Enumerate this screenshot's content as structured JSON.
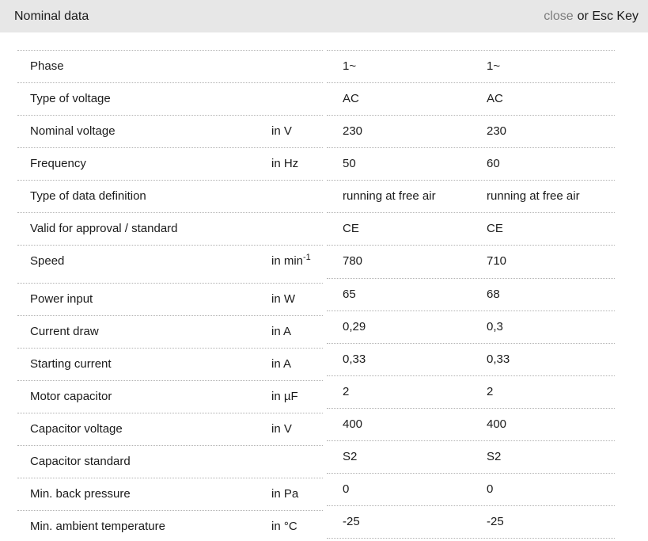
{
  "header": {
    "title": "Nominal data",
    "close_label": "close",
    "close_suffix": "or Esc Key"
  },
  "colors": {
    "header_bg": "#e7e7e7",
    "divider": "#b2b2b2",
    "text": "#1b1b1b",
    "close_link": "#7c7c7c"
  },
  "table": {
    "rows": [
      {
        "label": "Phase",
        "unit": "",
        "unit_sup": "",
        "values": [
          "1~",
          "1~"
        ]
      },
      {
        "label": "Type of voltage",
        "unit": "",
        "unit_sup": "",
        "values": [
          "AC",
          "AC"
        ]
      },
      {
        "label": "Nominal voltage",
        "unit": "in V",
        "unit_sup": "",
        "values": [
          "230",
          "230"
        ]
      },
      {
        "label": "Frequency",
        "unit": "in Hz",
        "unit_sup": "",
        "values": [
          "50",
          "60"
        ]
      },
      {
        "label": "Type of data definition",
        "unit": "",
        "unit_sup": "",
        "values": [
          "running at free air",
          "running at free air"
        ]
      },
      {
        "label": "Valid for approval / standard",
        "unit": "",
        "unit_sup": "",
        "values": [
          "CE",
          "CE"
        ]
      },
      {
        "label": "Speed",
        "unit": "in min",
        "unit_sup": "-1",
        "values": [
          "780",
          "710"
        ]
      },
      {
        "label": "Power input",
        "unit": "in W",
        "unit_sup": "",
        "values": [
          "65",
          "68"
        ]
      },
      {
        "label": "Current draw",
        "unit": "in A",
        "unit_sup": "",
        "values": [
          "0,29",
          "0,3"
        ]
      },
      {
        "label": "Starting current",
        "unit": "in A",
        "unit_sup": "",
        "values": [
          "0,33",
          "0,33"
        ]
      },
      {
        "label": "Motor capacitor",
        "unit": "in µF",
        "unit_sup": "",
        "values": [
          "2",
          "2"
        ]
      },
      {
        "label": "Capacitor voltage",
        "unit": "in V",
        "unit_sup": "",
        "values": [
          "400",
          "400"
        ]
      },
      {
        "label": "Capacitor standard",
        "unit": "",
        "unit_sup": "",
        "values": [
          "S2",
          "S2"
        ]
      },
      {
        "label": "Min. back pressure",
        "unit": "in Pa",
        "unit_sup": "",
        "values": [
          "0",
          "0"
        ]
      },
      {
        "label": "Min. ambient temperature",
        "unit": "in °C",
        "unit_sup": "",
        "values": [
          "-25",
          "-25"
        ]
      }
    ]
  }
}
